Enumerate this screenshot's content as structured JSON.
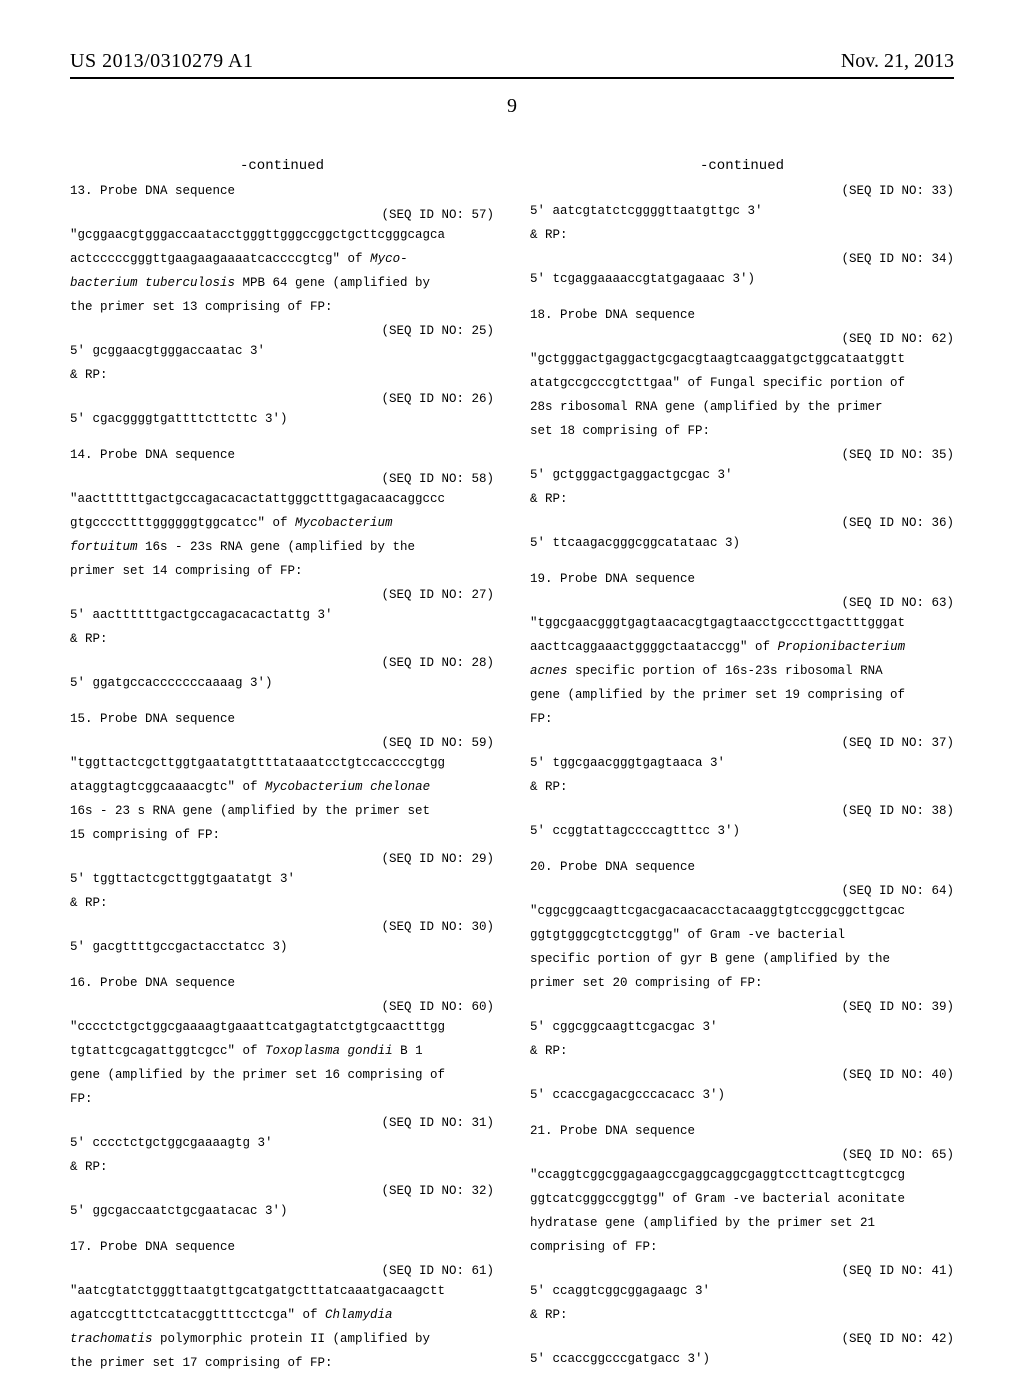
{
  "fonts": {
    "serif": "Times New Roman",
    "mono": "Courier New",
    "header_pt": 20,
    "pagenum_pt": 20,
    "seq_pt": 12.5,
    "continued_pt": 14
  },
  "colors": {
    "text": "#000000",
    "background": "#ffffff",
    "rule": "#000000"
  },
  "header": {
    "left": "US 2013/0310279 A1",
    "right": "Nov. 21, 2013"
  },
  "pagenum": "9",
  "continued": "-continued",
  "left_col": {
    "entries": [
      {
        "head": "13. Probe DNA sequence",
        "seqid": "(SEQ ID NO: 57)",
        "lines": [
          "\"gcggaacgtgggaccaatacctgggttgggccggctgcttcgggcagca",
          "actcccccgggttgaagaagaaaatcaccccgtcg\" of "
        ],
        "italic_tail": "Myco-",
        "lines2": [],
        "desc_html": "<span class='italic'>bacterium tuberculosis</span> MPB 64 gene (amplified by",
        "desc2": "the primer set 13 comprising of FP:",
        "fp_seqid": "(SEQ ID NO: 25)",
        "fp": "5' gcggaacgtgggaccaatac 3'",
        "rp_label": "& RP:",
        "rp_seqid": "(SEQ ID NO: 26)",
        "rp": "5' cgacggggtgattttcttcttc 3')"
      },
      {
        "head": "14. Probe DNA sequence",
        "seqid": "(SEQ ID NO: 58)",
        "lines": [
          "\"aacttttttgactgccagacacactattgggctttgagacaacaggccc"
        ],
        "desc_html": "gtgccccttttggggggtggcatcc\" of <span class='italic'>Mycobacterium</span>",
        "desc2_html": "<span class='italic'>fortuitum</span> 16s - 23s RNA gene (amplified by the",
        "desc3": "primer set 14 comprising of FP:",
        "fp_seqid": "(SEQ ID NO: 27)",
        "fp": "5' aacttttttgactgccagacacactattg 3'",
        "rp_label": "& RP:",
        "rp_seqid": "(SEQ ID NO: 28)",
        "rp": "5' ggatgccacccccccaaaag 3')"
      },
      {
        "head": "15. Probe DNA sequence",
        "seqid": "(SEQ ID NO: 59)",
        "lines": [
          "\"tggttactcgcttggtgaatatgttttataaatcctgtccaccccgtgg"
        ],
        "desc_html": "ataggtagtcggcaaaacgtc\" of <span class='italic'>Mycobacterium chelonae</span>",
        "desc2": "16s - 23 s RNA gene (amplified by the primer set",
        "desc3": "15 comprising of FP:",
        "fp_seqid": "(SEQ ID NO: 29)",
        "fp": "5' tggttactcgcttggtgaatatgt 3'",
        "rp_label": "& RP:",
        "rp_seqid": "(SEQ ID NO: 30)",
        "rp": "5' gacgttttgccgactacctatcc 3)"
      },
      {
        "head": "16. Probe DNA sequence",
        "seqid": "(SEQ ID NO: 60)",
        "lines": [
          "\"cccctctgctggcgaaaagtgaaattcatgagtatctgtgcaactttgg"
        ],
        "desc_html": "tgtattcgcagattggtcgcc\" of <span class='italic'>Toxoplasma gondii</span> B 1",
        "desc2": "gene (amplified by the primer set 16 comprising of",
        "desc3": "FP:",
        "fp_seqid": "(SEQ ID NO: 31)",
        "fp": "5' cccctctgctggcgaaaagtg 3'",
        "rp_label": "& RP:",
        "rp_seqid": "(SEQ ID NO: 32)",
        "rp": "5' ggcgaccaatctgcgaatacac 3')"
      },
      {
        "head": "17. Probe DNA sequence",
        "seqid": "(SEQ ID NO: 61)",
        "lines": [
          "\"aatcgtatctgggttaatgttgcatgatgctttatcaaatgacaagctt"
        ],
        "desc_html": "agatccgtttctcatacggttttcctcga\" of <span class='italic'>Chlamydia</span>",
        "desc2_html": "<span class='italic'>trachomatis</span> polymorphic protein II (amplified by",
        "desc3": "the primer set 17 comprising of FP:"
      }
    ]
  },
  "right_col": {
    "entries": [
      {
        "pre_seqid": "(SEQ ID NO: 33)",
        "fp": "5' aatcgtatctcggggttaatgttgc 3'",
        "rp_label": "& RP:",
        "rp_seqid": "(SEQ ID NO: 34)",
        "rp": "5' tcgaggaaaaccgtatgagaaac 3')"
      },
      {
        "head": "18. Probe DNA sequence",
        "seqid": "(SEQ ID NO: 62)",
        "lines": [
          "\"gctgggactgaggactgcgacgtaagtcaaggatgctggcataatggtt",
          "atatgccgcccgtcttgaa\" of Fungal specific portion of",
          "28s ribosomal RNA gene (amplified by the primer",
          "set 18 comprising of FP:"
        ],
        "fp_seqid": "(SEQ ID NO: 35)",
        "fp": "5' gctgggactgaggactgcgac 3'",
        "rp_label": "& RP:",
        "rp_seqid": "(SEQ ID NO: 36)",
        "rp": "5' ttcaagacgggcggcatataac 3)"
      },
      {
        "head": "19. Probe DNA sequence",
        "seqid": "(SEQ ID NO: 63)",
        "lines": [
          "\"tggcgaacgggtgagtaacacgtgagtaacctgcccttgactttgggat"
        ],
        "desc_html": "aacttcaggaaactggggctaataccgg\" of <span class='italic'>Propionibacterium</span>",
        "desc2_html": "<span class='italic'>acnes</span> specific portion of 16s-23s ribosomal RNA",
        "desc3": "gene (amplified by the primer set 19 comprising of",
        "desc4": "FP:",
        "fp_seqid": "(SEQ ID NO: 37)",
        "fp": "5' tggcgaacgggtgagtaaca 3'",
        "rp_label": "& RP:",
        "rp_seqid": "(SEQ ID NO: 38)",
        "rp": "5' ccggtattagccccagtttcc 3')"
      },
      {
        "head": "20. Probe DNA sequence",
        "seqid": "(SEQ ID NO: 64)",
        "lines": [
          "\"cggcggcaagttcgacgacaacacctacaaggtgtccggcggcttgcac",
          "ggtgtgggcgtctcggtgg\" of Gram -ve bacterial",
          "specific portion of gyr B gene (amplified by the",
          "primer set 20 comprising of FP:"
        ],
        "fp_seqid": "(SEQ ID NO: 39)",
        "fp": "5' cggcggcaagttcgacgac 3'",
        "rp_label": "& RP:",
        "rp_seqid": "(SEQ ID NO: 40)",
        "rp": "5' ccaccgagacgcccacacc 3')"
      },
      {
        "head": "21. Probe DNA sequence",
        "seqid": "(SEQ ID NO: 65)",
        "lines": [
          "\"ccaggtcggcggagaagccgaggcaggcgaggtccttcagttcgtcgcg",
          "ggtcatcgggccggtgg\" of Gram -ve bacterial aconitate",
          "hydratase gene (amplified by the primer set 21",
          "comprising of FP:"
        ],
        "fp_seqid": "(SEQ ID NO: 41)",
        "fp": "5' ccaggtcggcggagaagc 3'",
        "rp_label": "& RP:",
        "rp_seqid": "(SEQ ID NO: 42)",
        "rp": "5' ccaccggcccgatgacc 3')"
      }
    ]
  }
}
